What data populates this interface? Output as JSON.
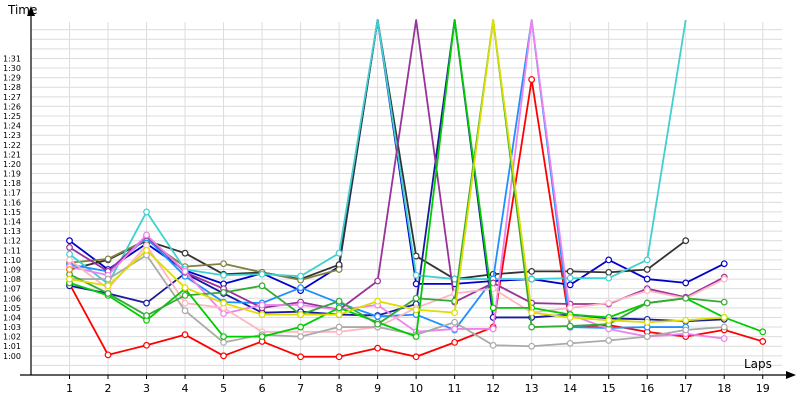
{
  "chart_data": {
    "type": "line",
    "title": "",
    "ylabel": "Time",
    "xlabel": "Laps",
    "x": [
      1,
      2,
      3,
      4,
      5,
      6,
      7,
      8,
      9,
      10,
      11,
      12,
      13,
      14,
      15,
      16,
      17,
      18,
      19
    ],
    "xlim": [
      0,
      19.5
    ],
    "ylim_seconds": [
      58,
      94.8
    ],
    "grid": true,
    "y_tick_labels": [
      "1:00",
      "1:01",
      "1:02",
      "1:03",
      "1:04",
      "1:05",
      "1:06",
      "1:07",
      "1:08",
      "1:09",
      "1:10",
      "1:11",
      "1:12",
      "1:13",
      "1:14",
      "1:15",
      "1:16",
      "1:17",
      "1:18",
      "1:19",
      "1:20",
      "1:21",
      "1:22",
      "1:23",
      "1:24",
      "1:25",
      "1:26",
      "1:27",
      "1:28",
      "1:29",
      "1:30",
      "1:31"
    ],
    "x_tick_labels": [
      "1",
      "2",
      "3",
      "4",
      "5",
      "6",
      "7",
      "8",
      "9",
      "10",
      "11",
      "12",
      "13",
      "14",
      "15",
      "16",
      "17",
      "18",
      "19"
    ],
    "y_unit": "seconds",
    "series": [
      {
        "color": "#ff0000",
        "values": [
          67.5,
          60.1,
          61.1,
          62.2,
          60.0,
          61.5,
          59.9,
          59.9,
          60.8,
          59.9,
          61.4,
          63.0,
          88.8,
          63.0,
          63.2,
          62.5,
          62.0,
          62.7,
          61.5
        ]
      },
      {
        "color": "#0000cc",
        "values": [
          72.0,
          69.0,
          71.7,
          68.9,
          67.5,
          68.6,
          66.8,
          69.3,
          110.0,
          67.5,
          67.5,
          67.8,
          68.0,
          67.4,
          70.0,
          68.0,
          67.6,
          69.6,
          null
        ]
      },
      {
        "color": "#1a1aa0",
        "values": [
          67.3,
          66.5,
          65.5,
          68.6,
          66.5,
          64.5,
          64.6,
          64.3,
          64.2,
          65.4,
          120.0,
          64.0,
          64.0,
          64.3,
          63.9,
          63.8,
          63.6,
          63.8,
          null
        ]
      },
      {
        "color": "#333333",
        "values": [
          69.0,
          70.0,
          72.0,
          70.7,
          68.5,
          68.7,
          68.0,
          69.5,
          115.0,
          70.4,
          68.0,
          68.5,
          68.8,
          68.8,
          68.7,
          69.0,
          72.0,
          null,
          null
        ]
      },
      {
        "color": "#808040",
        "values": [
          69.7,
          70.1,
          72.1,
          69.3,
          69.6,
          68.7,
          67.9,
          69.0,
          null,
          null,
          null,
          null,
          null,
          null,
          null,
          null,
          null,
          null,
          null
        ]
      },
      {
        "color": "#40d0d0",
        "values": [
          70.6,
          67.5,
          75.0,
          69.0,
          68.4,
          68.5,
          68.3,
          70.7,
          110.0,
          68.4,
          68.0,
          68.0,
          68.0,
          68.1,
          68.1,
          70.0,
          110.0,
          null,
          null
        ]
      },
      {
        "color": "#1e90ff",
        "values": [
          69.5,
          68.8,
          72.3,
          68.3,
          65.6,
          65.5,
          67.1,
          65.5,
          64.1,
          64.3,
          62.7,
          68.0,
          110.0,
          63.0,
          62.9,
          63.0,
          63.0,
          null,
          null
        ]
      },
      {
        "color": "#993399",
        "values": [
          71.3,
          68.8,
          72.5,
          68.7,
          67.0,
          65.0,
          65.6,
          64.8,
          67.8,
          110.0,
          65.6,
          67.6,
          65.5,
          65.4,
          65.4,
          67.0,
          66.1,
          68.2,
          null
        ]
      },
      {
        "color": "#ee82ee",
        "values": [
          69.3,
          68.4,
          72.6,
          68.8,
          64.4,
          65.3,
          65.3,
          64.8,
          65.3,
          62.5,
          62.8,
          62.8,
          110.0,
          64.3,
          62.8,
          62.0,
          62.3,
          61.8,
          null
        ]
      },
      {
        "color": "#ffb6c1",
        "values": [
          70.0,
          67.0,
          71.5,
          65.5,
          65.0,
          62.5,
          62.5,
          62.5,
          63.0,
          65.0,
          66.5,
          67.0,
          64.5,
          65.0,
          65.5,
          66.8,
          66.0,
          68.0,
          null
        ]
      },
      {
        "color": "#aaaaaa",
        "values": [
          68.0,
          68.0,
          70.5,
          64.7,
          61.4,
          62.2,
          62.0,
          63.0,
          63.0,
          62.2,
          63.5,
          61.1,
          61.0,
          61.3,
          61.6,
          62.0,
          62.7,
          63.0,
          null
        ]
      },
      {
        "color": "#00cc00",
        "values": [
          67.6,
          66.3,
          63.7,
          67.0,
          62.0,
          62.0,
          63.0,
          65.0,
          63.5,
          62.0,
          100.0,
          65.0,
          65.0,
          64.3,
          64.0,
          65.5,
          66.0,
          64.0,
          62.5
        ]
      },
      {
        "color": "#33aa33",
        "values": [
          68.5,
          66.5,
          64.2,
          66.3,
          66.6,
          67.3,
          64.3,
          65.7,
          63.3,
          66.0,
          65.7,
          110.0,
          63.0,
          63.1,
          63.3,
          65.5,
          66.0,
          65.6,
          null
        ]
      },
      {
        "color": "#dddd00",
        "values": [
          68.0,
          67.3,
          71.0,
          67.1,
          65.5,
          64.3,
          64.3,
          64.3,
          65.7,
          64.8,
          64.5,
          110.0,
          64.5,
          64.0,
          63.7,
          63.5,
          63.7,
          64.0,
          null
        ]
      },
      {
        "color": "#ff8c00",
        "values": [
          69.0,
          null,
          null,
          null,
          null,
          null,
          null,
          null,
          null,
          null,
          null,
          null,
          null,
          null,
          null,
          null,
          null,
          null,
          null
        ]
      }
    ]
  }
}
